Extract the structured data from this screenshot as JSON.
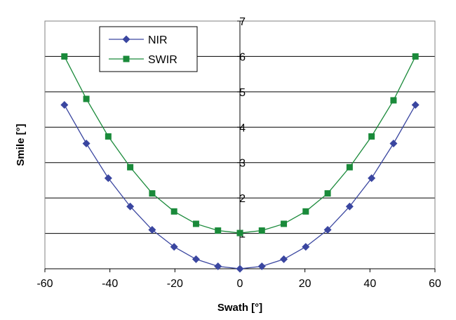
{
  "chart_data": {
    "type": "line",
    "title": "",
    "xlabel": "Swath [°]",
    "ylabel": "Smile [°]",
    "xlim": [
      -60,
      60
    ],
    "ylim": [
      0,
      7
    ],
    "xticks": [
      -60,
      -40,
      -20,
      0,
      20,
      40,
      60
    ],
    "xtick_labels": [
      "-60",
      "-40",
      "-20",
      "0",
      "20",
      "40",
      "60"
    ],
    "yticks": [
      1,
      2,
      3,
      4,
      5,
      6,
      7
    ],
    "ytick_labels": [
      "1",
      "2",
      "3",
      "4",
      "5",
      "6",
      "7"
    ],
    "grid": "horizontal",
    "legend_position": "top-left",
    "x": [
      -54,
      -47.25,
      -40.5,
      -33.75,
      -27,
      -20.25,
      -13.5,
      -6.75,
      0,
      6.75,
      13.5,
      20.25,
      27,
      33.75,
      40.5,
      47.25,
      54
    ],
    "series": [
      {
        "name": "NIR",
        "color": "#3a46a0",
        "marker": "diamond",
        "values": [
          4.63,
          3.54,
          2.56,
          1.76,
          1.1,
          0.62,
          0.27,
          0.07,
          0.0,
          0.07,
          0.27,
          0.62,
          1.1,
          1.76,
          2.56,
          3.54,
          4.63
        ]
      },
      {
        "name": "SWIR",
        "color": "#1a8a3a",
        "marker": "square",
        "values": [
          6.0,
          4.8,
          3.74,
          2.87,
          2.13,
          1.62,
          1.27,
          1.08,
          1.01,
          1.08,
          1.27,
          1.62,
          2.13,
          2.87,
          3.74,
          4.76,
          6.0
        ]
      }
    ]
  }
}
